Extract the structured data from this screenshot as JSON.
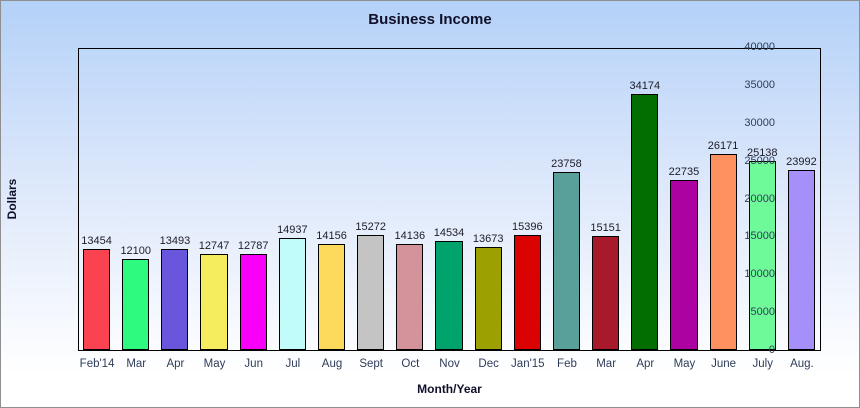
{
  "window": {
    "border_color": "#8f8f8f",
    "background_gradient_top": "#b4d1f8",
    "background_gradient_bottom": "#ffffff"
  },
  "chart_data": {
    "type": "bar",
    "title": "Business Income",
    "xlabel": "Month/Year",
    "ylabel": "Dollars",
    "ylim": [
      0,
      40000
    ],
    "ytick_step": 5000,
    "grid": false,
    "legend_position": "none",
    "value_labels_shown": true,
    "categories": [
      "Feb'14",
      "Mar",
      "Apr",
      "May",
      "Jun",
      "Jul",
      "Aug",
      "Sept",
      "Oct",
      "Nov",
      "Dec",
      "Jan'15",
      "Feb",
      "Mar",
      "Apr",
      "May",
      "June",
      "July",
      "Aug."
    ],
    "values": [
      13454,
      12100,
      13493,
      12747,
      12787,
      14937,
      14156,
      15272,
      14136,
      14534,
      13673,
      15396,
      23758,
      15151,
      34174,
      22735,
      26171,
      25138,
      23992
    ],
    "bar_colors": [
      "#fa4251",
      "#2efa80",
      "#6a55dd",
      "#f5ed5e",
      "#f800f8",
      "#c2fcfa",
      "#fdd95c",
      "#c4c4c4",
      "#d4939b",
      "#00a36c",
      "#9ca000",
      "#db0202",
      "#5aa09a",
      "#a8192b",
      "#026e02",
      "#ac02a2",
      "#fe9160",
      "#6efa98",
      "#a78ffa"
    ],
    "bar_border_color": "#000000",
    "title_color": "#10102a",
    "tick_label_color": "#2f3d59",
    "value_label_color": "#1c1c28"
  }
}
